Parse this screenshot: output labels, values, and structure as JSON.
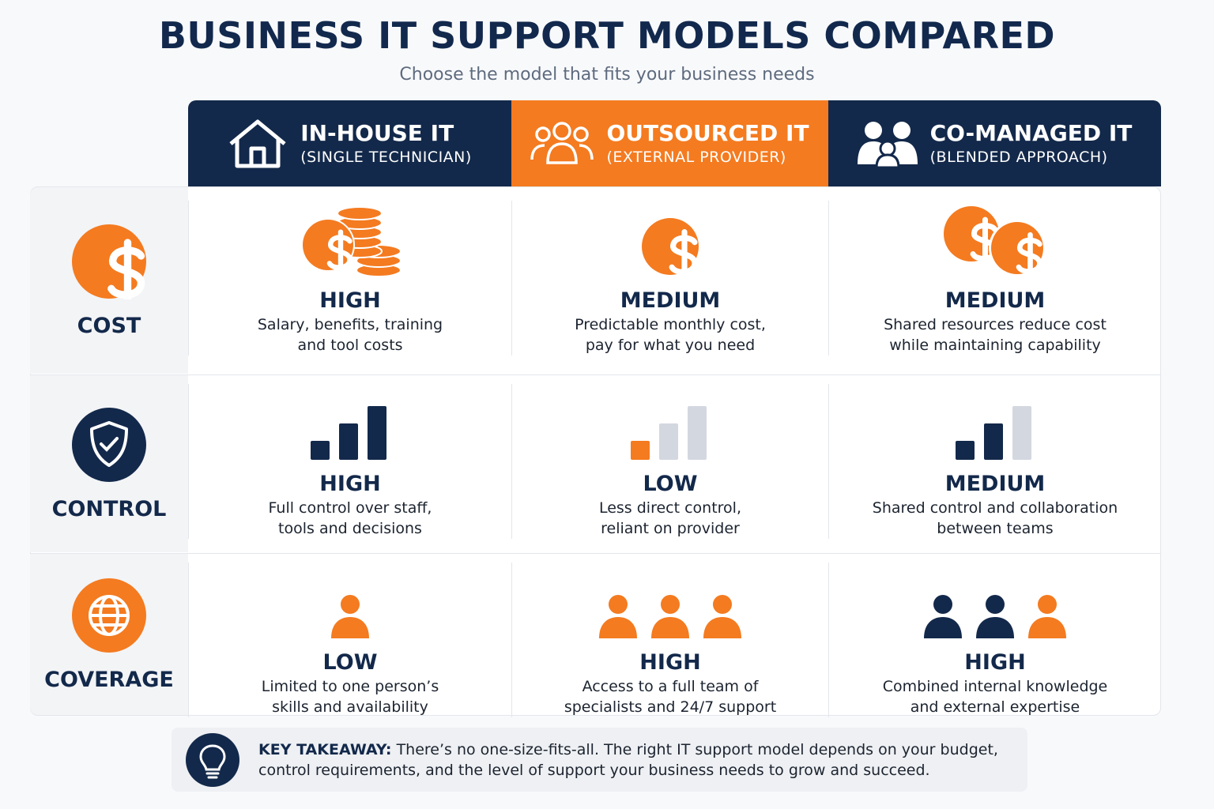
{
  "header": {
    "title": "BUSINESS IT SUPPORT MODELS COMPARED",
    "subtitle": "Choose the model that fits your business needs"
  },
  "columns": [
    {
      "title": "IN-HOUSE IT",
      "subtitle": "(SINGLE TECHNICIAN)"
    },
    {
      "title": "OUTSOURCED IT",
      "subtitle": "(EXTERNAL PROVIDER)"
    },
    {
      "title": "CO-MANAGED IT",
      "subtitle": "(BLENDED APPROACH)"
    }
  ],
  "rows": [
    {
      "label": "COST",
      "cells": [
        {
          "rating": "HIGH",
          "description": [
            "Salary, benefits, training",
            "and tool costs"
          ]
        },
        {
          "rating": "MEDIUM",
          "description": [
            "Predictable monthly cost,",
            "pay for what you need"
          ]
        },
        {
          "rating": "MEDIUM",
          "description": [
            "Shared resources reduce cost",
            "while maintaining capability"
          ]
        }
      ]
    },
    {
      "label": "CONTROL",
      "cells": [
        {
          "rating": "HIGH",
          "description": [
            "Full control over staff,",
            "tools and decisions"
          ]
        },
        {
          "rating": "LOW",
          "description": [
            "Less direct control,",
            "reliant on provider"
          ]
        },
        {
          "rating": "MEDIUM",
          "description": [
            "Shared control and collaboration",
            "between teams"
          ]
        }
      ]
    },
    {
      "label": "COVERAGE",
      "cells": [
        {
          "rating": "LOW",
          "description": [
            "Limited to one person’s",
            "skills and availability"
          ]
        },
        {
          "rating": "HIGH",
          "description": [
            "Access to a full team of",
            "specialists and 24/7 support"
          ]
        },
        {
          "rating": "HIGH",
          "description": [
            "Combined internal knowledge",
            "and external expertise"
          ]
        }
      ]
    }
  ],
  "takeaway": {
    "label": "KEY TAKEAWAY:",
    "text": "There’s no one-size-fits-all. The right IT support model depends on your budget, control requirements, and the level of support your business needs to grow and succeed."
  }
}
